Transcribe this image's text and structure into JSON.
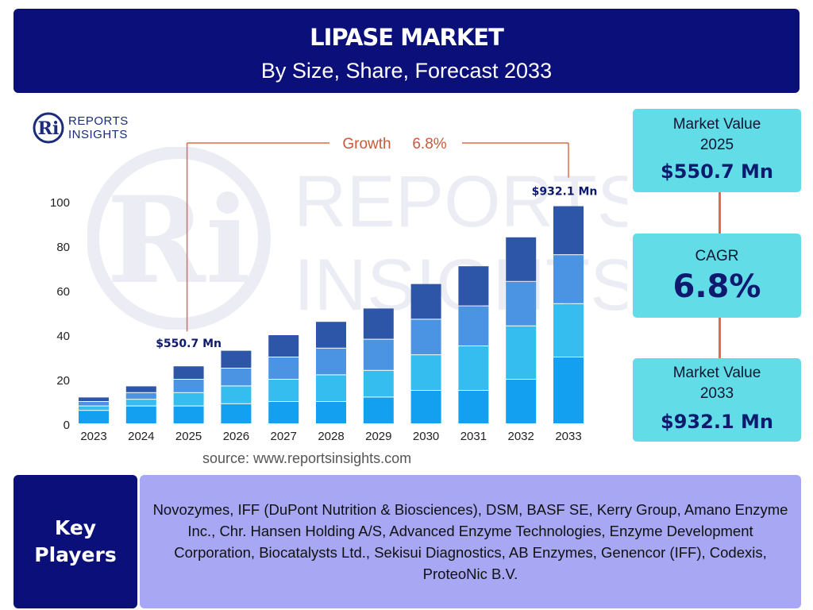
{
  "header": {
    "title": "LIPASE MARKET",
    "subtitle": "By Size, Share, Forecast 2033"
  },
  "logo": {
    "initials": "Ri",
    "line1": "REPORTS",
    "line2": "INSIGHTS"
  },
  "watermark": {
    "initials": "Ri",
    "line1": "REPORTS",
    "line2": "INSIGHTS"
  },
  "chart_data": {
    "type": "bar",
    "stacked": true,
    "categories": [
      "2023",
      "2024",
      "2025",
      "2026",
      "2027",
      "2028",
      "2029",
      "2030",
      "2031",
      "2032",
      "2033"
    ],
    "series": [
      {
        "color": "#14a0f0",
        "values": [
          6,
          8,
          8,
          9,
          10,
          10,
          12,
          15,
          15,
          20,
          30
        ]
      },
      {
        "color": "#35bdf0",
        "values": [
          2,
          3,
          6,
          8,
          10,
          12,
          12,
          16,
          20,
          24,
          24
        ]
      },
      {
        "color": "#4a94e3",
        "values": [
          2,
          3,
          6,
          8,
          10,
          12,
          14,
          16,
          18,
          20,
          22
        ]
      },
      {
        "color": "#2e56a8",
        "values": [
          2,
          3,
          6,
          8,
          10,
          12,
          14,
          16,
          18,
          20,
          22
        ]
      }
    ],
    "yticks": [
      0,
      20,
      40,
      60,
      80,
      100
    ],
    "ylim": [
      0,
      100
    ],
    "grid": false,
    "annotations": {
      "growth_text": "Growth",
      "growth_value": "6.8%",
      "start_category": "2025",
      "start_label": "$550.7 Mn",
      "end_category": "2033",
      "end_label": "$932.1 Mn"
    }
  },
  "source": "source: www.reportsinsights.com",
  "market_value_2025": {
    "label_line1": "Market Value",
    "label_line2": "2025",
    "value": "$550.7 Mn"
  },
  "cagr": {
    "label": "CAGR",
    "value": "6.8%"
  },
  "market_value_2033": {
    "label_line1": "Market Value",
    "label_line2": "2033",
    "value": "$932.1 Mn"
  },
  "key_players": {
    "heading_line1": "Key",
    "heading_line2": "Players",
    "text": "Novozymes, IFF (DuPont Nutrition & Biosciences), DSM, BASF SE, Kerry Group, Amano Enzyme Inc., Chr. Hansen Holding A/S, Advanced Enzyme Technologies, Enzyme Development Corporation, Biocatalysts Ltd., Sekisui Diagnostics, AB Enzymes, Genencor (IFF), Codexis, ProteoNic B.V."
  },
  "colors": {
    "navy": "#0a0f7a",
    "cyan_box": "#62dde8",
    "growth_line": "#e06a4a",
    "players_bg": "#a7a7f4"
  }
}
